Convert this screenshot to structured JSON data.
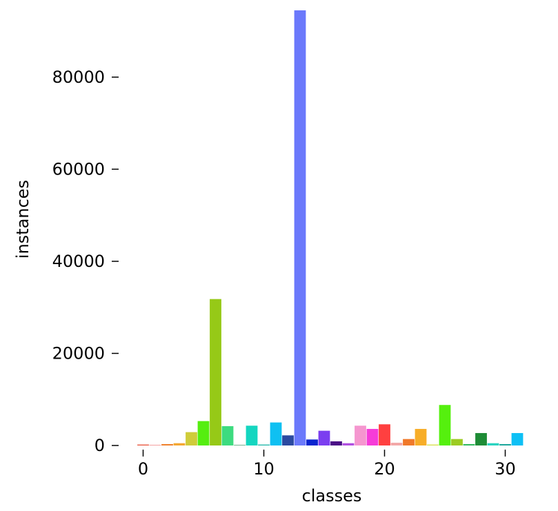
{
  "chart_data": {
    "type": "bar",
    "title": "",
    "xlabel": "classes",
    "ylabel": "instances",
    "xlim": [
      -1,
      31.8
    ],
    "ylim": [
      0,
      94500
    ],
    "grid": false,
    "legend": "none",
    "x_ticks": [
      0,
      10,
      20,
      30
    ],
    "y_ticks": [
      0,
      20000,
      40000,
      60000,
      80000
    ],
    "bars": [
      {
        "x": 0,
        "value": 200,
        "color": "#e8533a"
      },
      {
        "x": 1,
        "value": 150,
        "color": "#f3a0a0"
      },
      {
        "x": 2,
        "value": 300,
        "color": "#ef7f2a"
      },
      {
        "x": 3,
        "value": 500,
        "color": "#f4a732"
      },
      {
        "x": 4,
        "value": 2900,
        "color": "#cfcc3a"
      },
      {
        "x": 5,
        "value": 5300,
        "color": "#55ee10"
      },
      {
        "x": 6,
        "value": 31800,
        "color": "#96c917"
      },
      {
        "x": 7,
        "value": 4200,
        "color": "#3ddb7f"
      },
      {
        "x": 8,
        "value": 100,
        "color": "#2e8b57"
      },
      {
        "x": 9,
        "value": 4300,
        "color": "#14d6c0"
      },
      {
        "x": 10,
        "value": 200,
        "color": "#1fb5a8"
      },
      {
        "x": 11,
        "value": 5000,
        "color": "#0fc0f2"
      },
      {
        "x": 12,
        "value": 2200,
        "color": "#2b4aa0"
      },
      {
        "x": 13,
        "value": 94500,
        "color": "#6b79fb"
      },
      {
        "x": 14,
        "value": 1300,
        "color": "#0a24cf"
      },
      {
        "x": 15,
        "value": 3200,
        "color": "#7b3ef0"
      },
      {
        "x": 16,
        "value": 900,
        "color": "#4b0f86"
      },
      {
        "x": 17,
        "value": 500,
        "color": "#b04ee0"
      },
      {
        "x": 18,
        "value": 4300,
        "color": "#f596cf"
      },
      {
        "x": 19,
        "value": 3600,
        "color": "#f63cd8"
      },
      {
        "x": 20,
        "value": 4600,
        "color": "#ff4040"
      },
      {
        "x": 21,
        "value": 600,
        "color": "#f3a8a8"
      },
      {
        "x": 22,
        "value": 1400,
        "color": "#f0792a"
      },
      {
        "x": 23,
        "value": 3600,
        "color": "#f7ad28"
      },
      {
        "x": 24,
        "value": 200,
        "color": "#d6e04a"
      },
      {
        "x": 25,
        "value": 8800,
        "color": "#55f00e"
      },
      {
        "x": 26,
        "value": 1400,
        "color": "#9ccc22"
      },
      {
        "x": 27,
        "value": 300,
        "color": "#2eb85c"
      },
      {
        "x": 28,
        "value": 2700,
        "color": "#1e8c36"
      },
      {
        "x": 29,
        "value": 500,
        "color": "#2ad3c0"
      },
      {
        "x": 30,
        "value": 300,
        "color": "#1aa59a"
      },
      {
        "x": 31,
        "value": 2700,
        "color": "#0ec0f5"
      }
    ]
  }
}
